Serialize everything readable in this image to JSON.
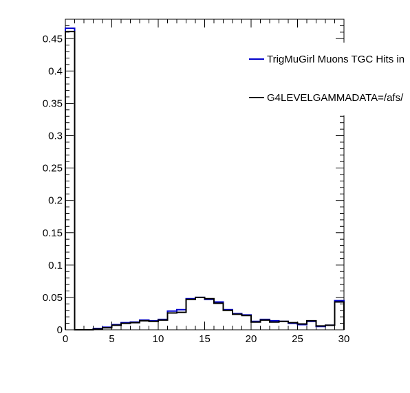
{
  "chart_data": {
    "type": "histogram",
    "title": "",
    "xlabel": "",
    "ylabel": "",
    "xlim": [
      0,
      30
    ],
    "ylim": [
      0,
      0.48
    ],
    "grid": false,
    "legend_position": "top-right",
    "x_ticks": [
      "0",
      "5",
      "10",
      "15",
      "20",
      "25",
      "30"
    ],
    "y_ticks": [
      "0",
      "0.05",
      "0.1",
      "0.15",
      "0.2",
      "0.25",
      "0.3",
      "0.35",
      "0.4",
      "0.45"
    ],
    "bin_edges": [
      0,
      1,
      2,
      3,
      4,
      5,
      6,
      7,
      8,
      9,
      10,
      11,
      12,
      13,
      14,
      15,
      16,
      17,
      18,
      19,
      20,
      21,
      22,
      23,
      24,
      25,
      26,
      27,
      28,
      29,
      30
    ],
    "series": [
      {
        "name": "TrigMuGirl Muons TGC Hits in",
        "color": "#0000cc",
        "values": [
          0.466,
          0.0,
          0.0,
          0.002,
          0.004,
          0.008,
          0.011,
          0.012,
          0.015,
          0.014,
          0.016,
          0.029,
          0.031,
          0.048,
          0.05,
          0.047,
          0.043,
          0.031,
          0.025,
          0.023,
          0.013,
          0.016,
          0.014,
          0.013,
          0.01,
          0.008,
          0.013,
          0.005,
          0.007,
          0.045
        ]
      },
      {
        "name": "G4LEVELGAMMADATA=/afs/",
        "color": "#000000",
        "values": [
          0.461,
          0.0,
          0.0,
          0.001,
          0.003,
          0.007,
          0.01,
          0.011,
          0.014,
          0.013,
          0.015,
          0.026,
          0.027,
          0.047,
          0.05,
          0.048,
          0.041,
          0.03,
          0.024,
          0.022,
          0.012,
          0.015,
          0.012,
          0.013,
          0.011,
          0.009,
          0.014,
          0.006,
          0.007,
          0.043
        ]
      }
    ]
  }
}
